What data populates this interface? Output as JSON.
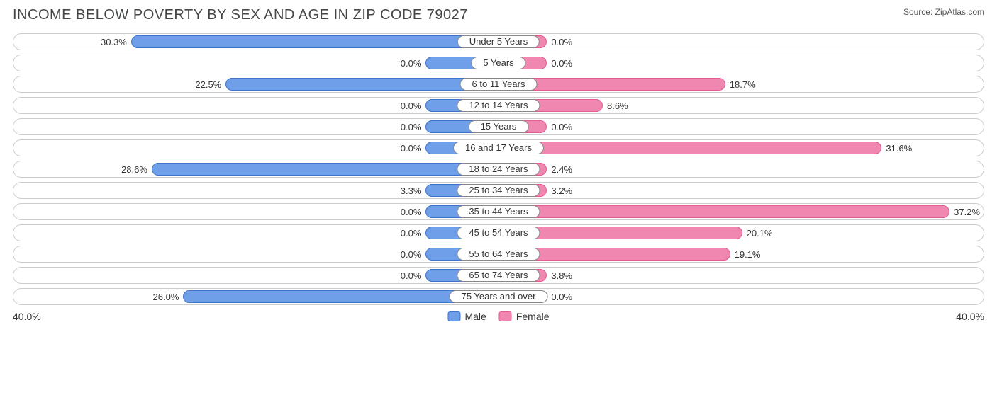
{
  "title": "INCOME BELOW POVERTY BY SEX AND AGE IN ZIP CODE 79027",
  "source": "Source: ZipAtlas.com",
  "axis_max": 40.0,
  "axis_label_left": "40.0%",
  "axis_label_right": "40.0%",
  "male_min_bar_pct": 6.0,
  "female_min_bar_pct": 4.0,
  "colors": {
    "male_fill": "#6f9fe8",
    "male_border": "#3e74c9",
    "female_fill": "#ef87b0",
    "female_border": "#e45b92",
    "track_border": "#cccccc",
    "text": "#333333"
  },
  "legend": {
    "male": "Male",
    "female": "Female"
  },
  "rows": [
    {
      "label": "Under 5 Years",
      "male": 30.3,
      "female": 0.0
    },
    {
      "label": "5 Years",
      "male": 0.0,
      "female": 0.0
    },
    {
      "label": "6 to 11 Years",
      "male": 22.5,
      "female": 18.7
    },
    {
      "label": "12 to 14 Years",
      "male": 0.0,
      "female": 8.6
    },
    {
      "label": "15 Years",
      "male": 0.0,
      "female": 0.0
    },
    {
      "label": "16 and 17 Years",
      "male": 0.0,
      "female": 31.6
    },
    {
      "label": "18 to 24 Years",
      "male": 28.6,
      "female": 2.4
    },
    {
      "label": "25 to 34 Years",
      "male": 3.3,
      "female": 3.2
    },
    {
      "label": "35 to 44 Years",
      "male": 0.0,
      "female": 37.2
    },
    {
      "label": "45 to 54 Years",
      "male": 0.0,
      "female": 20.1
    },
    {
      "label": "55 to 64 Years",
      "male": 0.0,
      "female": 19.1
    },
    {
      "label": "65 to 74 Years",
      "male": 0.0,
      "female": 3.8
    },
    {
      "label": "75 Years and over",
      "male": 26.0,
      "female": 0.0
    }
  ]
}
